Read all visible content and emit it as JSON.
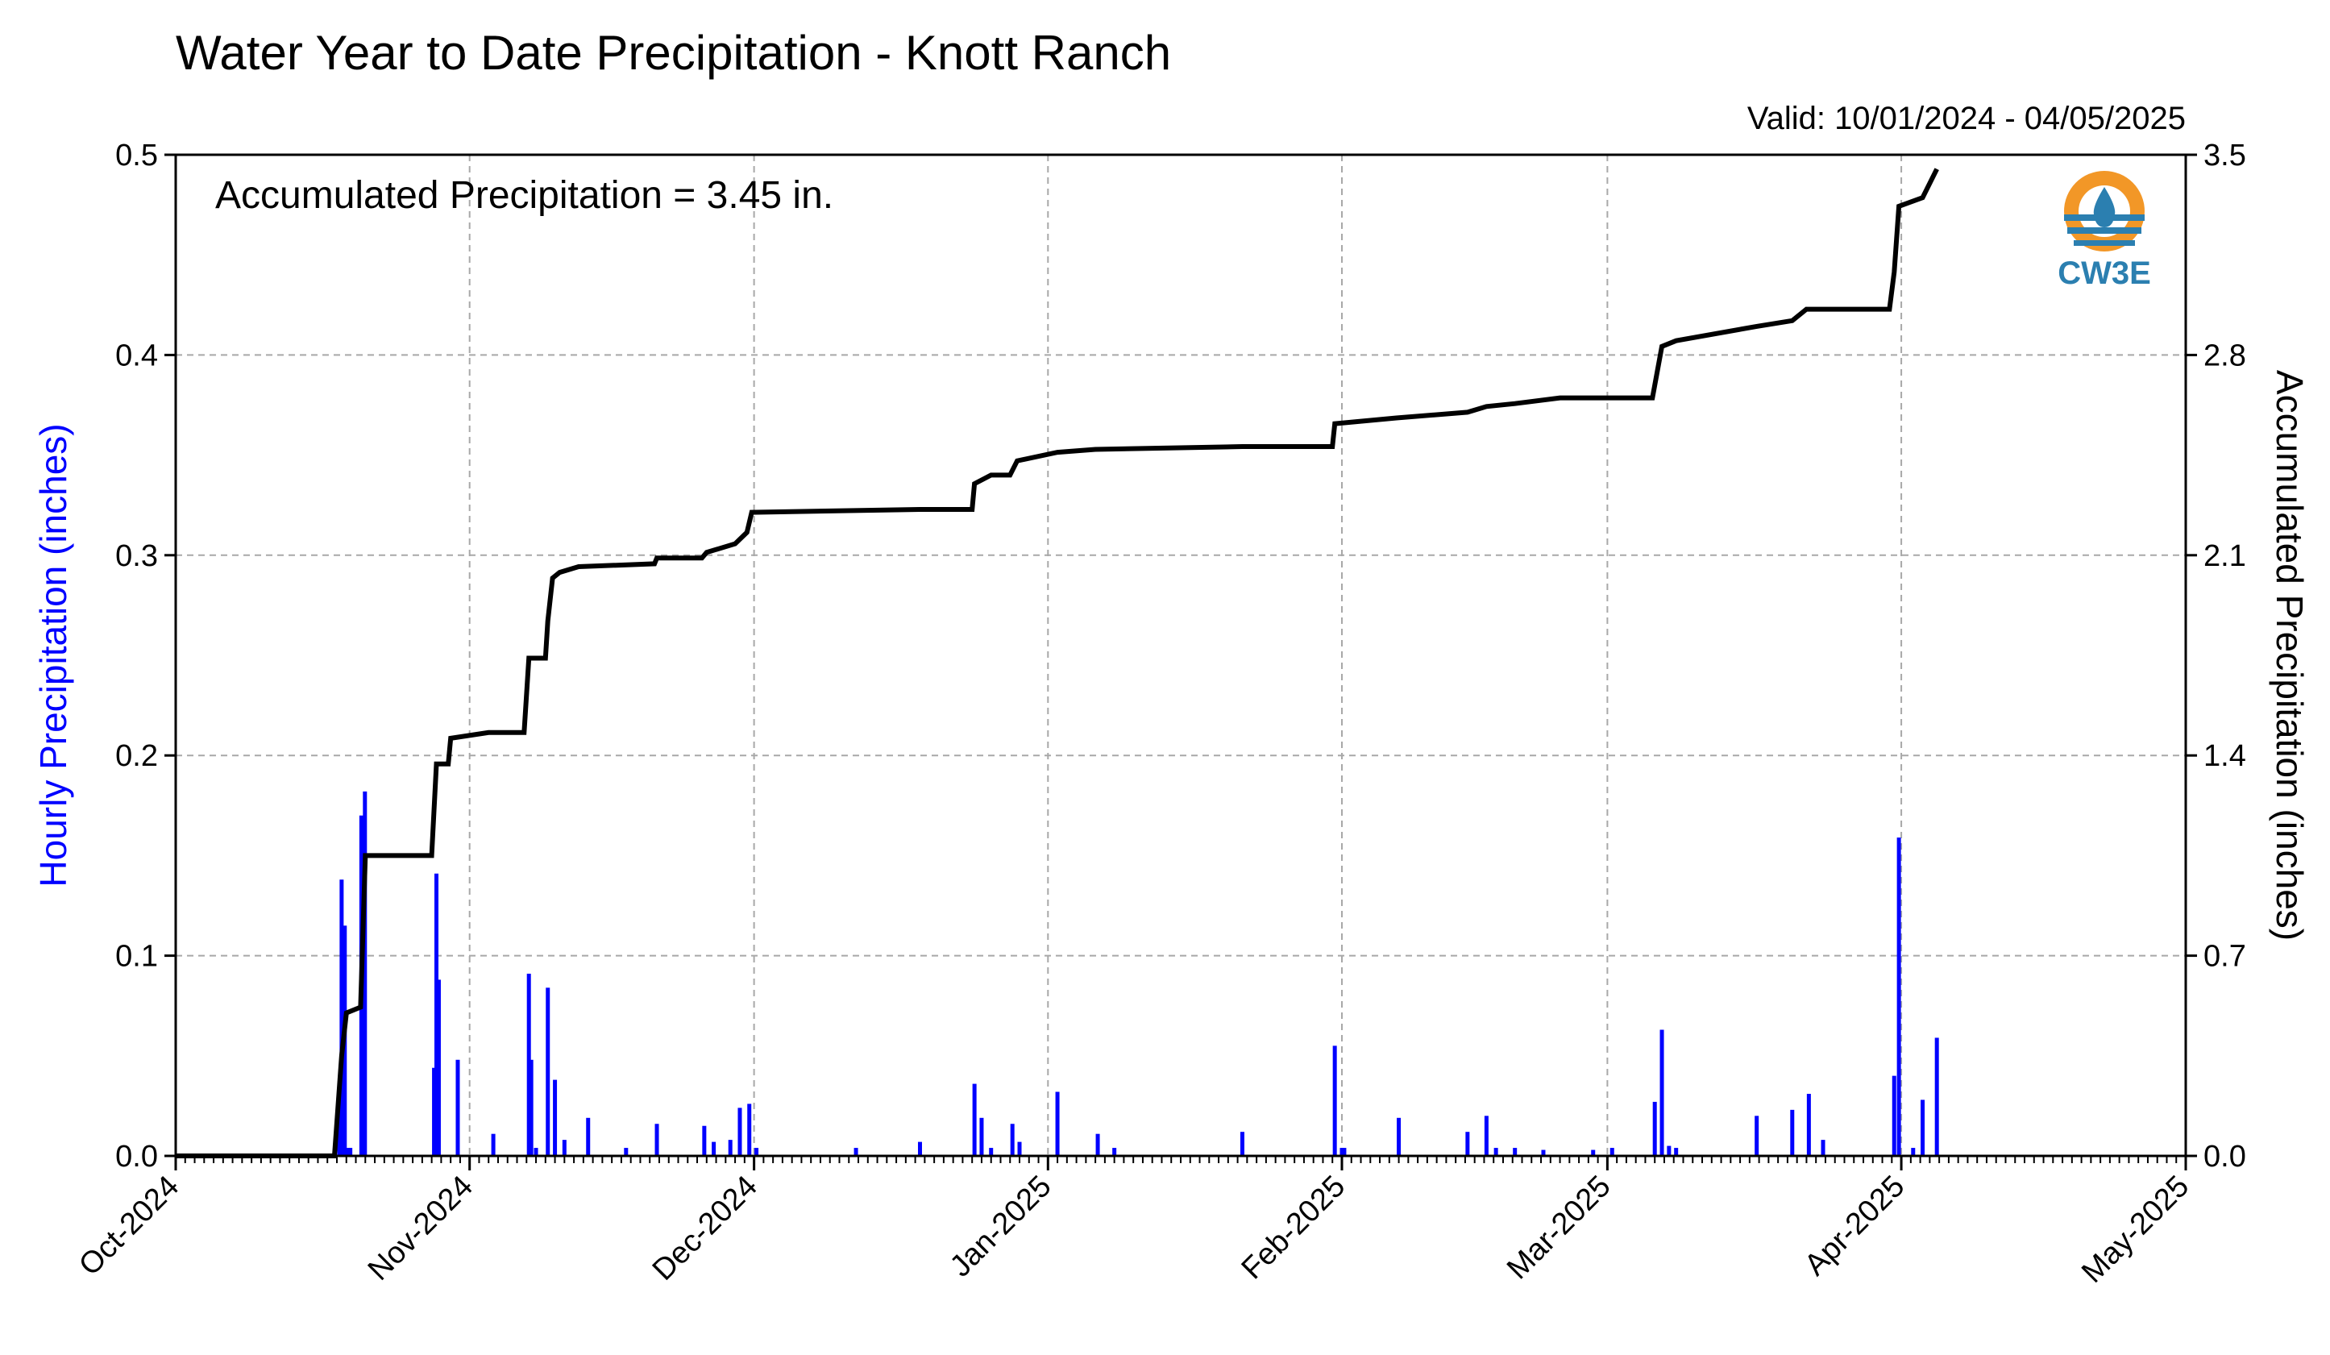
{
  "title": "Water Year to Date Precipitation - Knott Ranch",
  "valid_text": "Valid: 10/01/2024 - 04/05/2025",
  "accumulated_text": "Accumulated Precipitation = 3.45 in.",
  "logo_text": "CW3E",
  "chart_data": {
    "type": "bar",
    "title": "Water Year to Date Precipitation - Knott Ranch",
    "ylabel_left": "Hourly Precipitation (inches)",
    "ylabel_right": "Accumulated Precipitation (inches)",
    "ylim_left": [
      0,
      0.5
    ],
    "ylim_right": [
      0,
      3.5
    ],
    "yticks_left": [
      "0.0",
      "0.1",
      "0.2",
      "0.3",
      "0.4",
      "0.5"
    ],
    "yticks_right": [
      "0.0",
      "0.7",
      "1.4",
      "2.1",
      "2.8",
      "3.5"
    ],
    "x_start": "2024-10-01",
    "x_end": "2025-05-01",
    "x_ticks": [
      {
        "date": "2024-10-01",
        "label": "Oct-2024"
      },
      {
        "date": "2024-11-01",
        "label": "Nov-2024"
      },
      {
        "date": "2024-12-01",
        "label": "Dec-2024"
      },
      {
        "date": "2025-01-01",
        "label": "Jan-2025"
      },
      {
        "date": "2025-02-01",
        "label": "Feb-2025"
      },
      {
        "date": "2025-03-01",
        "label": "Mar-2025"
      },
      {
        "date": "2025-04-01",
        "label": "Apr-2025"
      },
      {
        "date": "2025-05-01",
        "label": "May-2025"
      }
    ],
    "grid": true,
    "colors": {
      "hourly": "#0000ff",
      "accumulated": "#000000",
      "left_axis_label": "#0000ff"
    },
    "series": [
      {
        "type": "bar",
        "axis": "left",
        "values": [
          {
            "x": "2024-10-18 06:00",
            "y": 0.032
          },
          {
            "x": "2024-10-18 12:00",
            "y": 0.138
          },
          {
            "x": "2024-10-18 20:00",
            "y": 0.115
          },
          {
            "x": "2024-10-19 04:00",
            "y": 0.004
          },
          {
            "x": "2024-10-19 10:00",
            "y": 0.004
          },
          {
            "x": "2024-10-20 14:00",
            "y": 0.17
          },
          {
            "x": "2024-10-20 23:00",
            "y": 0.182
          },
          {
            "x": "2024-10-28 06:00",
            "y": 0.044
          },
          {
            "x": "2024-10-28 12:00",
            "y": 0.141
          },
          {
            "x": "2024-10-28 18:00",
            "y": 0.088
          },
          {
            "x": "2024-10-30 18:00",
            "y": 0.048
          },
          {
            "x": "2024-11-03 12:00",
            "y": 0.011
          },
          {
            "x": "2024-11-07 06:00",
            "y": 0.091
          },
          {
            "x": "2024-11-07 12:00",
            "y": 0.048
          },
          {
            "x": "2024-11-08 00:00",
            "y": 0.004
          },
          {
            "x": "2024-11-09 06:00",
            "y": 0.084
          },
          {
            "x": "2024-11-10 00:00",
            "y": 0.038
          },
          {
            "x": "2024-11-11 00:00",
            "y": 0.008
          },
          {
            "x": "2024-11-13 12:00",
            "y": 0.019
          },
          {
            "x": "2024-11-17 12:00",
            "y": 0.004
          },
          {
            "x": "2024-11-20 18:00",
            "y": 0.016
          },
          {
            "x": "2024-11-25 18:00",
            "y": 0.015
          },
          {
            "x": "2024-11-26 18:00",
            "y": 0.007
          },
          {
            "x": "2024-11-28 12:00",
            "y": 0.008
          },
          {
            "x": "2024-11-29 12:00",
            "y": 0.024
          },
          {
            "x": "2024-11-30 12:00",
            "y": 0.026
          },
          {
            "x": "2024-12-01 06:00",
            "y": 0.004
          },
          {
            "x": "2024-12-11 18:00",
            "y": 0.004
          },
          {
            "x": "2024-12-18 12:00",
            "y": 0.007
          },
          {
            "x": "2024-12-24 06:00",
            "y": 0.036
          },
          {
            "x": "2024-12-25 00:00",
            "y": 0.019
          },
          {
            "x": "2024-12-26 00:00",
            "y": 0.004
          },
          {
            "x": "2024-12-28 06:00",
            "y": 0.016
          },
          {
            "x": "2024-12-29 00:00",
            "y": 0.007
          },
          {
            "x": "2025-01-02 00:00",
            "y": 0.032
          },
          {
            "x": "2025-01-06 06:00",
            "y": 0.011
          },
          {
            "x": "2025-01-08 00:00",
            "y": 0.004
          },
          {
            "x": "2025-01-21 12:00",
            "y": 0.012
          },
          {
            "x": "2025-01-31 06:00",
            "y": 0.055
          },
          {
            "x": "2025-02-01 00:00",
            "y": 0.004
          },
          {
            "x": "2025-02-01 06:00",
            "y": 0.004
          },
          {
            "x": "2025-02-07 00:00",
            "y": 0.019
          },
          {
            "x": "2025-02-14 06:00",
            "y": 0.012
          },
          {
            "x": "2025-02-16 06:00",
            "y": 0.02
          },
          {
            "x": "2025-02-17 06:00",
            "y": 0.004
          },
          {
            "x": "2025-02-19 06:00",
            "y": 0.004
          },
          {
            "x": "2025-02-22 06:00",
            "y": 0.003
          },
          {
            "x": "2025-02-27 12:00",
            "y": 0.003
          },
          {
            "x": "2025-03-01 12:00",
            "y": 0.004
          },
          {
            "x": "2025-03-06 00:00",
            "y": 0.027
          },
          {
            "x": "2025-03-06 18:00",
            "y": 0.063
          },
          {
            "x": "2025-03-07 12:00",
            "y": 0.005
          },
          {
            "x": "2025-03-08 06:00",
            "y": 0.004
          },
          {
            "x": "2025-03-16 18:00",
            "y": 0.02
          },
          {
            "x": "2025-03-20 12:00",
            "y": 0.023
          },
          {
            "x": "2025-03-22 06:00",
            "y": 0.031
          },
          {
            "x": "2025-03-23 18:00",
            "y": 0.008
          },
          {
            "x": "2025-03-31 06:00",
            "y": 0.04
          },
          {
            "x": "2025-03-31 18:00",
            "y": 0.159
          },
          {
            "x": "2025-04-02 06:00",
            "y": 0.004
          },
          {
            "x": "2025-04-03 06:00",
            "y": 0.028
          },
          {
            "x": "2025-04-04 18:00",
            "y": 0.059
          }
        ]
      },
      {
        "type": "line",
        "axis": "right",
        "values": [
          {
            "x": "2024-10-01 00:00",
            "y": 0.0
          },
          {
            "x": "2024-10-17 18:00",
            "y": 0.0
          },
          {
            "x": "2024-10-18 12:00",
            "y": 0.35
          },
          {
            "x": "2024-10-19 00:00",
            "y": 0.5
          },
          {
            "x": "2024-10-20 12:00",
            "y": 0.52
          },
          {
            "x": "2024-10-21 00:00",
            "y": 1.05
          },
          {
            "x": "2024-10-28 00:00",
            "y": 1.05
          },
          {
            "x": "2024-10-28 12:00",
            "y": 1.37
          },
          {
            "x": "2024-10-29 18:00",
            "y": 1.37
          },
          {
            "x": "2024-10-30 00:00",
            "y": 1.46
          },
          {
            "x": "2024-11-03 00:00",
            "y": 1.48
          },
          {
            "x": "2024-11-06 18:00",
            "y": 1.48
          },
          {
            "x": "2024-11-07 06:00",
            "y": 1.74
          },
          {
            "x": "2024-11-09 00:00",
            "y": 1.74
          },
          {
            "x": "2024-11-09 06:00",
            "y": 1.87
          },
          {
            "x": "2024-11-09 18:00",
            "y": 2.02
          },
          {
            "x": "2024-11-10 12:00",
            "y": 2.04
          },
          {
            "x": "2024-11-12 12:00",
            "y": 2.06
          },
          {
            "x": "2024-11-20 12:00",
            "y": 2.07
          },
          {
            "x": "2024-11-20 18:00",
            "y": 2.09
          },
          {
            "x": "2024-11-25 12:00",
            "y": 2.09
          },
          {
            "x": "2024-11-26 00:00",
            "y": 2.11
          },
          {
            "x": "2024-11-29 00:00",
            "y": 2.14
          },
          {
            "x": "2024-11-30 06:00",
            "y": 2.18
          },
          {
            "x": "2024-11-30 18:00",
            "y": 2.25
          },
          {
            "x": "2024-12-18 12:00",
            "y": 2.26
          },
          {
            "x": "2024-12-24 00:00",
            "y": 2.26
          },
          {
            "x": "2024-12-24 06:00",
            "y": 2.35
          },
          {
            "x": "2024-12-26 00:00",
            "y": 2.38
          },
          {
            "x": "2024-12-28 00:00",
            "y": 2.38
          },
          {
            "x": "2024-12-28 18:00",
            "y": 2.43
          },
          {
            "x": "2025-01-02 00:00",
            "y": 2.46
          },
          {
            "x": "2025-01-06 00:00",
            "y": 2.47
          },
          {
            "x": "2025-01-21 12:00",
            "y": 2.48
          },
          {
            "x": "2025-01-31 00:00",
            "y": 2.48
          },
          {
            "x": "2025-01-31 06:00",
            "y": 2.56
          },
          {
            "x": "2025-02-06 18:00",
            "y": 2.58
          },
          {
            "x": "2025-02-14 06:00",
            "y": 2.6
          },
          {
            "x": "2025-02-16 06:00",
            "y": 2.62
          },
          {
            "x": "2025-02-19 06:00",
            "y": 2.63
          },
          {
            "x": "2025-02-24 00:00",
            "y": 2.65
          },
          {
            "x": "2025-03-05 18:00",
            "y": 2.65
          },
          {
            "x": "2025-03-06 18:00",
            "y": 2.83
          },
          {
            "x": "2025-03-08 06:00",
            "y": 2.85
          },
          {
            "x": "2025-03-16 18:00",
            "y": 2.9
          },
          {
            "x": "2025-03-20 12:00",
            "y": 2.92
          },
          {
            "x": "2025-03-22 00:00",
            "y": 2.96
          },
          {
            "x": "2025-03-30 18:00",
            "y": 2.96
          },
          {
            "x": "2025-03-31 06:00",
            "y": 3.09
          },
          {
            "x": "2025-03-31 18:00",
            "y": 3.32
          },
          {
            "x": "2025-04-03 06:00",
            "y": 3.35
          },
          {
            "x": "2025-04-04 18:00",
            "y": 3.45
          }
        ]
      }
    ]
  }
}
